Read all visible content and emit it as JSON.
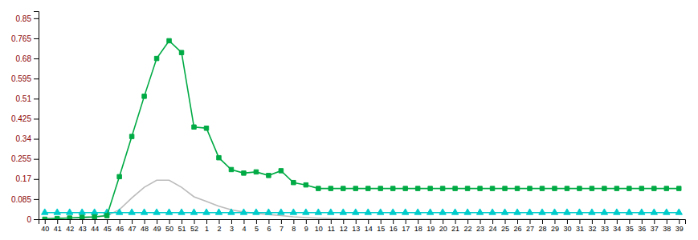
{
  "chart_data": {
    "type": "line",
    "categories": [
      "40",
      "41",
      "42",
      "43",
      "44",
      "45",
      "46",
      "47",
      "48",
      "49",
      "50",
      "51",
      "52",
      "1",
      "2",
      "3",
      "4",
      "5",
      "6",
      "7",
      "8",
      "9",
      "10",
      "11",
      "12",
      "13",
      "14",
      "15",
      "16",
      "17",
      "18",
      "19",
      "20",
      "21",
      "22",
      "23",
      "24",
      "25",
      "26",
      "27",
      "28",
      "29",
      "30",
      "31",
      "32",
      "33",
      "34",
      "35",
      "36",
      "37",
      "38",
      "39"
    ],
    "series": [
      {
        "color": "#BBBBBB",
        "line_style": "solid",
        "values": [
          0.005,
          0.005,
          0.005,
          0.005,
          0.008,
          0.015,
          0.04,
          0.09,
          0.135,
          0.165,
          0.165,
          0.135,
          0.095,
          0.075,
          0.055,
          0.04,
          0.03,
          0.025,
          0.02,
          0.015,
          0.01,
          0.007,
          0.004,
          0.002,
          0.001,
          0.0,
          0.0,
          0.0,
          0.0,
          0.0,
          0.0,
          0.0,
          0.0,
          0.0,
          0.0,
          0.0,
          0.0,
          0.0,
          0.0,
          0.0,
          0.0,
          0.0,
          0.0,
          0.0,
          0.0,
          0.0,
          0.0,
          0.0,
          0.0,
          0.0,
          0.0,
          0.0
        ]
      },
      {
        "color": "#00CCCC",
        "line_style": "solid",
        "marker": "triangle",
        "values": [
          0.028,
          0.028,
          0.028,
          0.028,
          0.028,
          0.028,
          0.028,
          0.028,
          0.028,
          0.028,
          0.028,
          0.028,
          0.028,
          0.028,
          0.028,
          0.028,
          0.028,
          0.028,
          0.028,
          0.028,
          0.028,
          0.028,
          0.028,
          0.028,
          0.028,
          0.028,
          0.028,
          0.028,
          0.028,
          0.028,
          0.028,
          0.028,
          0.028,
          0.028,
          0.028,
          0.028,
          0.028,
          0.028,
          0.028,
          0.028,
          0.028,
          0.028,
          0.028,
          0.028,
          0.028,
          0.028,
          0.028,
          0.028,
          0.028,
          0.028,
          0.028,
          0.028
        ]
      },
      {
        "color": "#00AA44",
        "line_style": "solid",
        "marker": "square",
        "values": [
          0.0,
          0.003,
          0.005,
          0.008,
          0.01,
          0.015,
          0.18,
          0.35,
          0.52,
          0.68,
          0.755,
          0.705,
          0.39,
          0.385,
          0.26,
          0.21,
          0.195,
          0.2,
          0.185,
          0.205,
          0.155,
          0.145,
          0.13,
          0.13,
          0.13,
          0.13,
          0.13,
          0.13,
          0.13,
          0.13,
          0.13,
          0.13,
          0.13,
          0.13,
          0.13,
          0.13,
          0.13,
          0.13,
          0.13,
          0.13,
          0.13,
          0.13,
          0.13,
          0.13,
          0.13,
          0.13,
          0.13,
          0.13,
          0.13,
          0.13,
          0.13,
          0.13
        ]
      }
    ],
    "ylim": [
      0,
      0.88
    ],
    "yticks": [
      0,
      0.085,
      0.17,
      0.255,
      0.34,
      0.425,
      0.51,
      0.595,
      0.68,
      0.765,
      0.85
    ],
    "grid": false
  }
}
